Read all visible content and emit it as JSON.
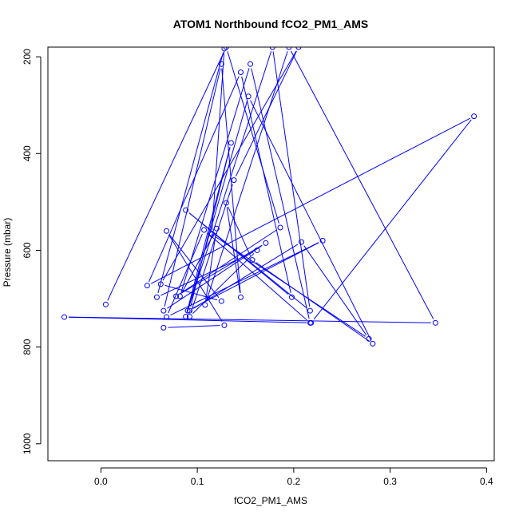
{
  "chart_data": {
    "type": "line",
    "title": "ATOM1 Northbound fCO2_PM1_AMS",
    "xlabel": "fCO2_PM1_AMS",
    "ylabel": "Pressure (mbar)",
    "xlim": [
      -0.055,
      0.408
    ],
    "ylim": [
      1035,
      180
    ],
    "y_reversed": true,
    "x_ticks": [
      0.0,
      0.1,
      0.2,
      0.3,
      0.4
    ],
    "x_tick_labels": [
      "0.0",
      "0.1",
      "0.2",
      "0.3",
      "0.4"
    ],
    "y_ticks": [
      200,
      400,
      600,
      800,
      1000
    ],
    "y_tick_labels": [
      "200",
      "400",
      "600",
      "800",
      "1000"
    ],
    "grid": false,
    "legend": "none",
    "series_color": "#0000ff",
    "series": [
      {
        "points": [
          [
            0.065,
            760
          ],
          [
            0.128,
            755
          ],
          [
            0.068,
            560
          ],
          [
            0.125,
            705
          ],
          [
            0.062,
            670
          ],
          [
            0.205,
            180
          ],
          [
            0.138,
            455
          ],
          [
            0.092,
            737
          ],
          [
            0.162,
            600
          ],
          [
            0.058,
            697
          ],
          [
            0.128,
            183
          ],
          [
            0.115,
            567
          ],
          [
            0.278,
            783
          ],
          [
            0.208,
            583
          ],
          [
            0.092,
            725
          ],
          [
            0.135,
            378
          ],
          [
            0.088,
            737
          ],
          [
            0.178,
            180
          ],
          [
            0.217,
            725
          ],
          [
            0.088,
            517
          ],
          [
            0.198,
            697
          ],
          [
            0.145,
            232
          ],
          [
            0.048,
            673
          ],
          [
            0.387,
            323
          ],
          [
            0.218,
            750
          ],
          [
            -0.038,
            738
          ],
          [
            0.347,
            750
          ],
          [
            0.195,
            180
          ],
          [
            0.108,
            713
          ],
          [
            0.12,
            555
          ],
          [
            0.082,
            695
          ],
          [
            0.155,
            215
          ],
          [
            0.217,
            750
          ],
          [
            0.107,
            558
          ],
          [
            0.068,
            738
          ],
          [
            0.23,
            580
          ],
          [
            0.09,
            725
          ],
          [
            0.153,
            282
          ],
          [
            0.282,
            793
          ],
          [
            0.157,
            620
          ],
          [
            0.13,
            502
          ],
          [
            0.145,
            697
          ],
          [
            0.125,
            215
          ],
          [
            0.065,
            725
          ],
          [
            0.171,
            585
          ],
          [
            0.078,
            695
          ],
          [
            0.186,
            553
          ],
          [
            0.13,
            180
          ],
          [
            0.005,
            712
          ]
        ]
      }
    ]
  }
}
